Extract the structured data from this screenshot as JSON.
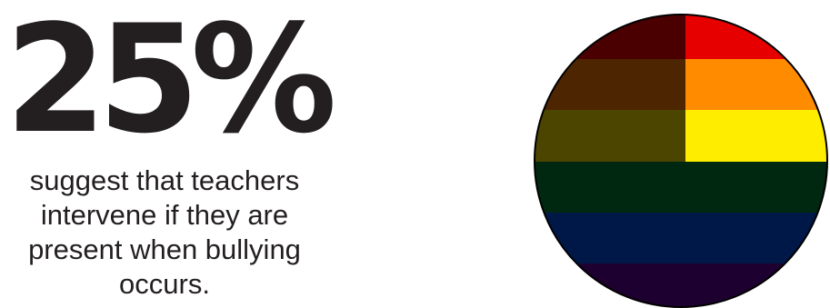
{
  "stat": {
    "value": "25%",
    "caption": "suggest that teachers intervene if they are present when bullying occurs."
  },
  "flag_graphic": {
    "shape": "circle",
    "stripes": [
      {
        "name": "red",
        "left_color": "#4a0000",
        "right_color": "#e60000"
      },
      {
        "name": "orange",
        "left_color": "#4d2500",
        "right_color": "#ff8c00"
      },
      {
        "name": "yellow",
        "left_color": "#4b4500",
        "right_color": "#ffed00"
      },
      {
        "name": "green",
        "left_color": "#002810",
        "right_color": "#002810"
      },
      {
        "name": "blue",
        "left_color": "#001848",
        "right_color": "#001848"
      },
      {
        "name": "purple",
        "left_color": "#1e0030",
        "right_color": "#1e0030"
      }
    ],
    "outline_color": "#000000"
  }
}
